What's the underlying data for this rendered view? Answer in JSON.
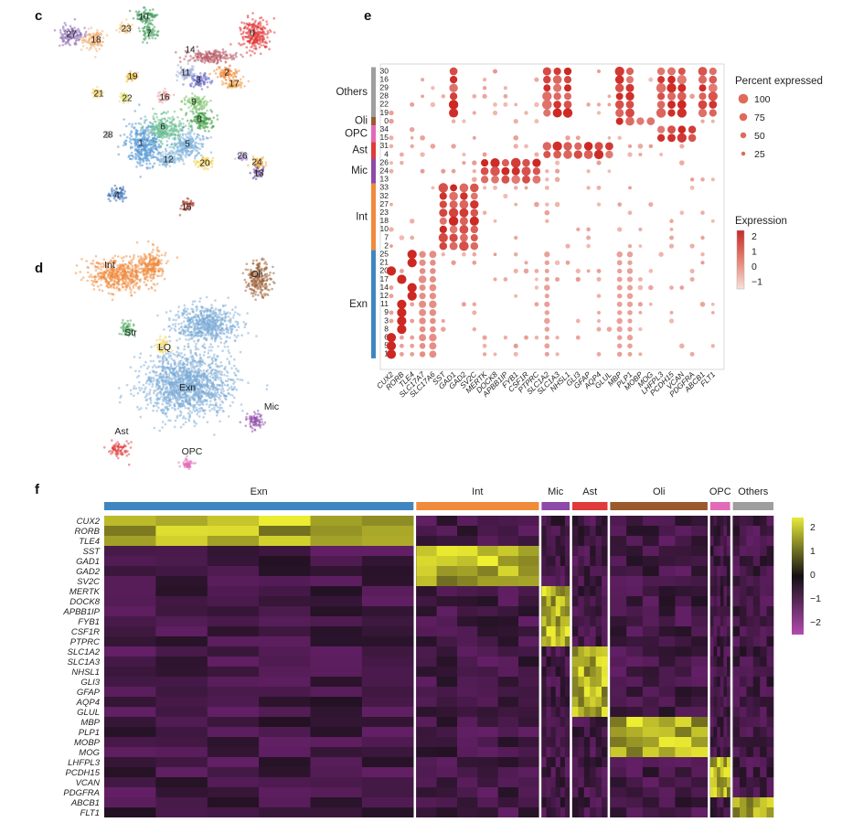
{
  "figure": {
    "panels": {
      "c": "c",
      "d": "d",
      "e": "e",
      "f": "f"
    }
  },
  "umap_c": {
    "clusters": [
      {
        "id": "0",
        "color": "#e23a3a"
      },
      {
        "id": "1",
        "color": "#5b9bd5"
      },
      {
        "id": "2",
        "color": "#f08a3c"
      },
      {
        "id": "3",
        "color": "#6f6fc8"
      },
      {
        "id": "4",
        "color": "#3b6fb6"
      },
      {
        "id": "5",
        "color": "#7fb2dd"
      },
      {
        "id": "6",
        "color": "#6cbf92"
      },
      {
        "id": "7",
        "color": "#4fa467"
      },
      {
        "id": "8",
        "color": "#43a047"
      },
      {
        "id": "9",
        "color": "#7cc36c"
      },
      {
        "id": "10",
        "color": "#3e9a5a"
      },
      {
        "id": "11",
        "color": "#a6b2d8"
      },
      {
        "id": "12",
        "color": "#86b7dc"
      },
      {
        "id": "13",
        "color": "#6d4a9e"
      },
      {
        "id": "14",
        "color": "#b85a64"
      },
      {
        "id": "15",
        "color": "#b3402e"
      },
      {
        "id": "16",
        "color": "#e8a0a0"
      },
      {
        "id": "17",
        "color": "#f0a04a"
      },
      {
        "id": "18",
        "color": "#f3b37a"
      },
      {
        "id": "19",
        "color": "#f2c03f"
      },
      {
        "id": "20",
        "color": "#f2d04f"
      },
      {
        "id": "21",
        "color": "#f5d26a"
      },
      {
        "id": "22",
        "color": "#e6e37a"
      },
      {
        "id": "23",
        "color": "#f6c57f"
      },
      {
        "id": "24",
        "color": "#f2b13d"
      },
      {
        "id": "26",
        "color": "#b5a3d6"
      },
      {
        "id": "27",
        "color": "#8e6fb5"
      },
      {
        "id": "28",
        "color": "#c9c9c9"
      }
    ]
  },
  "umap_d": {
    "celltypes": [
      {
        "name": "Int",
        "color": "#f08a3c"
      },
      {
        "name": "Oli",
        "color": "#9a5a2e"
      },
      {
        "name": "Str",
        "color": "#4aa35a"
      },
      {
        "name": "LQ",
        "color": "#f2d45a"
      },
      {
        "name": "Exn",
        "color": "#7aaad6"
      },
      {
        "name": "Mic",
        "color": "#8d4aa8"
      },
      {
        "name": "Ast",
        "color": "#e03a3a"
      },
      {
        "name": "OPC",
        "color": "#e36ab8"
      }
    ]
  },
  "chart_data": [
    {
      "type": "dotplot",
      "title": "",
      "xlabel": "",
      "ylabel": "",
      "genes": [
        "CUX2",
        "RORB",
        "TLE4",
        "SLC17A7",
        "SLC17A6",
        "SST",
        "GAD1",
        "GAD2",
        "SV2C",
        "MERTK",
        "DOCK8",
        "APBB1IP",
        "FYB1",
        "CSF1R",
        "PTPRC",
        "SLC1A2",
        "SLC1A3",
        "NHSL1",
        "GLI3",
        "GFAP",
        "AQP4",
        "GLUL",
        "MBP",
        "PLP1",
        "MOBP",
        "MOG",
        "LHFPL3",
        "PCDH15",
        "VCAN",
        "PDGFRA",
        "ABCB1",
        "FLT1"
      ],
      "rows": [
        "30",
        "16",
        "29",
        "28",
        "22",
        "19",
        "0",
        "34",
        "15",
        "31",
        "4",
        "26",
        "24",
        "13",
        "33",
        "32",
        "27",
        "23",
        "18",
        "10",
        "7",
        "2",
        "25",
        "21",
        "20",
        "17",
        "14",
        "12",
        "11",
        "9",
        "3",
        "8",
        "6",
        "5",
        "1"
      ],
      "row_groups": [
        {
          "name": "Others",
          "color": "#9e9e9e",
          "rows": [
            "30",
            "16",
            "29",
            "28",
            "22",
            "19"
          ]
        },
        {
          "name": "Oli",
          "color": "#9a5a2e",
          "rows": [
            "0"
          ]
        },
        {
          "name": "OPC",
          "color": "#e36ab8",
          "rows": [
            "34",
            "15"
          ]
        },
        {
          "name": "Ast",
          "color": "#e03a3a",
          "rows": [
            "31",
            "4"
          ]
        },
        {
          "name": "Mic",
          "color": "#8d4aa8",
          "rows": [
            "26",
            "24",
            "13"
          ]
        },
        {
          "name": "Int",
          "color": "#f08a3c",
          "rows": [
            "33",
            "32",
            "27",
            "23",
            "18",
            "10",
            "7",
            "2"
          ]
        },
        {
          "name": "Exn",
          "color": "#3f86c0",
          "rows": [
            "25",
            "21",
            "20",
            "17",
            "14",
            "12",
            "11",
            "9",
            "3",
            "8",
            "6",
            "5",
            "1"
          ]
        }
      ],
      "size_legend": {
        "title": "Percent expressed",
        "values": [
          100,
          75,
          50,
          25
        ]
      },
      "color_legend": {
        "title": "Expression",
        "range": [
          -1,
          2
        ],
        "ticks": [
          "2",
          "1",
          "0",
          "−1"
        ]
      }
    },
    {
      "type": "heatmap",
      "title": "",
      "genes": [
        "CUX2",
        "RORB",
        "TLE4",
        "SST",
        "GAD1",
        "GAD2",
        "SV2C",
        "MERTK",
        "DOCK8",
        "APBB1IP",
        "FYB1",
        "CSF1R",
        "PTPRC",
        "SLC1A2",
        "SLC1A3",
        "NHSL1",
        "GLI3",
        "GFAP",
        "AQP4",
        "GLUL",
        "MBP",
        "PLP1",
        "MOBP",
        "MOG",
        "LHFPL3",
        "PCDH15",
        "VCAN",
        "PDGFRA",
        "ABCB1",
        "FLT1"
      ],
      "groups": [
        {
          "name": "Exn",
          "color": "#3f86c0",
          "weight": 343
        },
        {
          "name": "Int",
          "color": "#f08a3c",
          "weight": 136
        },
        {
          "name": "Mic",
          "color": "#8d4aa8",
          "weight": 31
        },
        {
          "name": "Ast",
          "color": "#e03a3a",
          "weight": 39
        },
        {
          "name": "Oli",
          "color": "#9a5a2e",
          "weight": 108
        },
        {
          "name": "OPC",
          "color": "#e36ab8",
          "weight": 22
        },
        {
          "name": "Others",
          "color": "#9e9e9e",
          "weight": 45
        }
      ],
      "color_legend": {
        "range": [
          -2,
          2
        ],
        "ticks": [
          "2",
          "1",
          "0",
          "−1",
          "−2"
        ]
      }
    }
  ]
}
